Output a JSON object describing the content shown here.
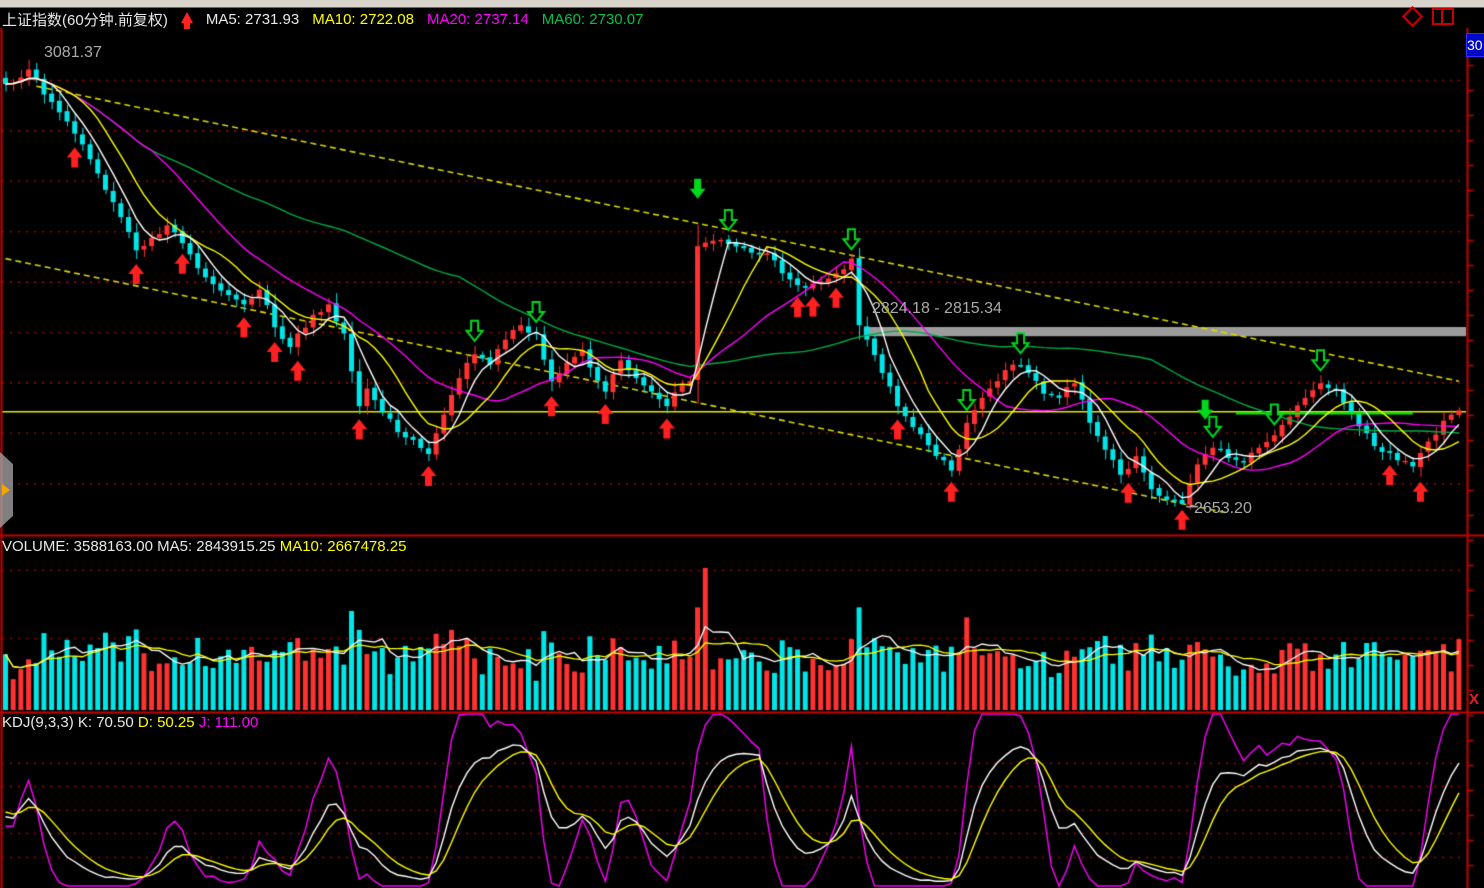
{
  "header": {
    "title": "上证指数(60分钟.前复权)",
    "ma_labels": [
      {
        "name": "ma5",
        "text": "MA5: 2731.93"
      },
      {
        "name": "ma10",
        "text": "MA10: 2722.08"
      },
      {
        "name": "ma20",
        "text": "MA20: 2737.14"
      },
      {
        "name": "ma60",
        "text": "MA60: 2730.07"
      }
    ]
  },
  "axis": {
    "top_price_tag": "30",
    "close_label": "X"
  },
  "annotations": {
    "high_label": "3081.37",
    "zone_label": "2824.18 - 2815.34",
    "low_label": "2653.20"
  },
  "volume_header": {
    "white_part": "VOLUME: 3588163.00  MA5: 2843915.25",
    "yellow_part": "MA10: 2667478.25"
  },
  "kdj_header": {
    "white_part": "KDJ(9,3,3)  K: 70.50",
    "yellow_part": "D: 50.25",
    "magenta_part": "J: 111.00"
  },
  "chart_data": {
    "type": "candlestick",
    "title": "上证指数 60分钟 前复权",
    "n": 190,
    "price_range": [
      2624,
      3112
    ],
    "grid": "red-dotted",
    "legend_position": "top-left",
    "price_anchors": [
      [
        0,
        3058
      ],
      [
        3,
        3072
      ],
      [
        5,
        3048
      ],
      [
        8,
        3022
      ],
      [
        10,
        3000
      ],
      [
        12,
        2972
      ],
      [
        15,
        2930
      ],
      [
        17,
        2898
      ],
      [
        19,
        2910
      ],
      [
        21,
        2922
      ],
      [
        23,
        2905
      ],
      [
        26,
        2872
      ],
      [
        29,
        2855
      ],
      [
        31,
        2846
      ],
      [
        33,
        2860
      ],
      [
        35,
        2824
      ],
      [
        37,
        2805
      ],
      [
        40,
        2836
      ],
      [
        42,
        2846
      ],
      [
        44,
        2818
      ],
      [
        46,
        2748
      ],
      [
        47,
        2765
      ],
      [
        49,
        2742
      ],
      [
        52,
        2718
      ],
      [
        55,
        2702
      ],
      [
        57,
        2740
      ],
      [
        59,
        2775
      ],
      [
        61,
        2798
      ],
      [
        63,
        2788
      ],
      [
        65,
        2812
      ],
      [
        67,
        2826
      ],
      [
        69,
        2818
      ],
      [
        71,
        2772
      ],
      [
        73,
        2790
      ],
      [
        75,
        2802
      ],
      [
        78,
        2762
      ],
      [
        80,
        2792
      ],
      [
        82,
        2775
      ],
      [
        84,
        2762
      ],
      [
        86,
        2748
      ],
      [
        88,
        2768
      ],
      [
        89,
        2772
      ],
      [
        90,
        2902
      ],
      [
        93,
        2908
      ],
      [
        96,
        2900
      ],
      [
        99,
        2895
      ],
      [
        101,
        2876
      ],
      [
        104,
        2862
      ],
      [
        106,
        2868
      ],
      [
        108,
        2876
      ],
      [
        110,
        2890
      ],
      [
        111,
        2826
      ],
      [
        112,
        2812
      ],
      [
        114,
        2780
      ],
      [
        116,
        2748
      ],
      [
        118,
        2728
      ],
      [
        121,
        2700
      ],
      [
        123,
        2686
      ],
      [
        125,
        2732
      ],
      [
        127,
        2756
      ],
      [
        129,
        2772
      ],
      [
        131,
        2788
      ],
      [
        133,
        2780
      ],
      [
        135,
        2760
      ],
      [
        137,
        2756
      ],
      [
        139,
        2770
      ],
      [
        141,
        2732
      ],
      [
        143,
        2706
      ],
      [
        145,
        2682
      ],
      [
        147,
        2700
      ],
      [
        149,
        2668
      ],
      [
        151,
        2658
      ],
      [
        153,
        2654
      ],
      [
        155,
        2692
      ],
      [
        157,
        2708
      ],
      [
        159,
        2698
      ],
      [
        161,
        2694
      ],
      [
        163,
        2708
      ],
      [
        165,
        2720
      ],
      [
        167,
        2738
      ],
      [
        169,
        2756
      ],
      [
        171,
        2770
      ],
      [
        173,
        2764
      ],
      [
        175,
        2742
      ],
      [
        177,
        2722
      ],
      [
        179,
        2704
      ],
      [
        181,
        2696
      ],
      [
        183,
        2690
      ],
      [
        185,
        2714
      ],
      [
        187,
        2734
      ],
      [
        189,
        2744
      ]
    ],
    "high_point": {
      "index": 3,
      "price": 3081.37
    },
    "low_point": {
      "index": 153,
      "price": 2653.2
    },
    "ma_periods": [
      60,
      20,
      10,
      5
    ],
    "ma_colors": {
      "5": "#ffffff",
      "10": "#ffff00",
      "20": "#ff00ff",
      "60": "#00aa44"
    },
    "candle_colors": {
      "up": "#ff3232",
      "down": "#00e6e8"
    },
    "markers": {
      "buy_indices": [
        9,
        17,
        23,
        31,
        35,
        38,
        46,
        55,
        71,
        78,
        86,
        103,
        105,
        108,
        116,
        123,
        146,
        153,
        180,
        184
      ],
      "sell_solid_indices": [
        90,
        156
      ],
      "sell_hollow_indices": [
        61,
        69,
        94,
        110,
        125,
        132,
        157,
        165,
        171
      ],
      "buy_color": "#ff2020",
      "sell_color": "#00d81e"
    },
    "trendlines": [
      {
        "from": [
          4,
          3056
        ],
        "to": [
          189,
          2772
        ],
        "color": "#d8d800",
        "style": "dashed"
      },
      {
        "from": [
          0,
          2890
        ],
        "to": [
          159,
          2645
        ],
        "color": "#d8d800",
        "style": "dashed"
      }
    ],
    "hline": {
      "price": 2742.7,
      "color": "#e8e800"
    },
    "green_segment": {
      "from_index": 160,
      "to_index": 183,
      "price": 2741,
      "color": "#00ee00"
    },
    "zone_bar": {
      "from_index": 112,
      "price_top": 2824.18,
      "price_bottom": 2815.34,
      "color": "#9c9c9c"
    },
    "volume": {
      "current": 3588163.0,
      "ma5": 2843915.25,
      "ma10": 2667478.25,
      "spike_index": 91,
      "spike_value": 7200000,
      "last_value": 3588163,
      "scale_max": 7600000,
      "ma_colors": {
        "5": "#ffffff",
        "10": "#ffff00"
      }
    },
    "kdj": {
      "params": [
        9,
        3,
        3
      ],
      "k": 70.5,
      "d": 50.25,
      "j": 111.0,
      "colors": {
        "k": "#ffffff",
        "d": "#ffff00",
        "j": "#ff00ff"
      }
    }
  }
}
